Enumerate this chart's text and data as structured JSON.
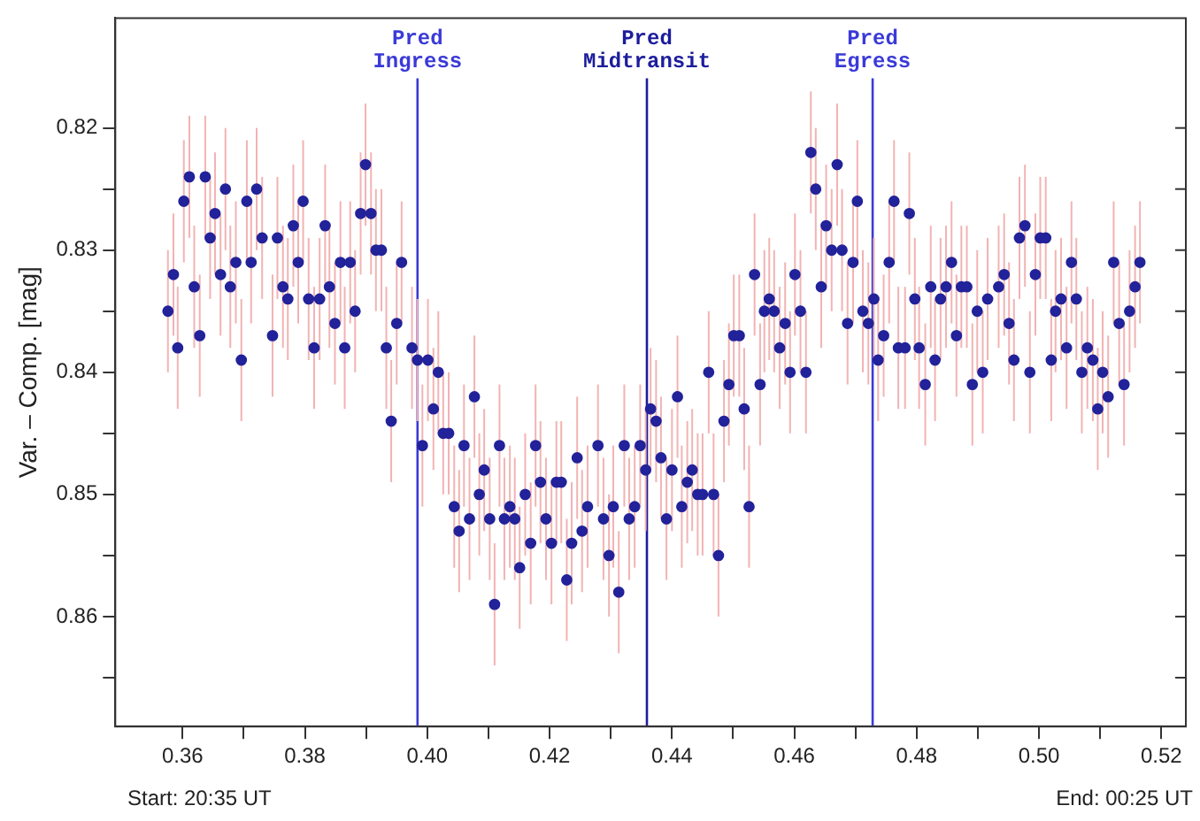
{
  "chart_data": {
    "type": "scatter",
    "ylabel": "Var. – Comp. [mag]",
    "annotations": [
      "Start: 20:35 UT",
      "End: 00:25 UT"
    ],
    "x": [
      0.3576,
      0.3585,
      0.3592,
      0.3602,
      0.3611,
      0.3619,
      0.3628,
      0.3637,
      0.3645,
      0.3653,
      0.3662,
      0.367,
      0.3678,
      0.3687,
      0.3696,
      0.3705,
      0.3712,
      0.3721,
      0.373,
      0.3747,
      0.3755,
      0.3764,
      0.3772,
      0.3781,
      0.3789,
      0.3797,
      0.3806,
      0.3815,
      0.3824,
      0.3833,
      0.384,
      0.3849,
      0.3858,
      0.3865,
      0.3874,
      0.3882,
      0.3891,
      0.3899,
      0.3908,
      0.3916,
      0.3925,
      0.3933,
      0.3941,
      0.395,
      0.3958,
      0.3975,
      0.3984,
      0.3992,
      0.4001,
      0.401,
      0.4018,
      0.4026,
      0.4035,
      0.4044,
      0.4052,
      0.406,
      0.4069,
      0.4077,
      0.4085,
      0.4093,
      0.4102,
      0.411,
      0.4118,
      0.4126,
      0.4135,
      0.4143,
      0.4151,
      0.416,
      0.4169,
      0.4177,
      0.4185,
      0.4194,
      0.4203,
      0.4211,
      0.4219,
      0.4228,
      0.4236,
      0.4245,
      0.4253,
      0.4262,
      0.4279,
      0.4288,
      0.4297,
      0.4304,
      0.4313,
      0.4322,
      0.433,
      0.4339,
      0.4348,
      0.4357,
      0.4365,
      0.4374,
      0.4382,
      0.4391,
      0.44,
      0.4409,
      0.4416,
      0.4425,
      0.4433,
      0.4442,
      0.445,
      0.446,
      0.4468,
      0.4476,
      0.4485,
      0.4493,
      0.4501,
      0.451,
      0.4518,
      0.4526,
      0.4535,
      0.4544,
      0.4551,
      0.4559,
      0.4567,
      0.4576,
      0.4585,
      0.4593,
      0.4601,
      0.461,
      0.4619,
      0.4627,
      0.4635,
      0.4644,
      0.4652,
      0.4661,
      0.467,
      0.4678,
      0.4687,
      0.4696,
      0.4703,
      0.4712,
      0.4721,
      0.473,
      0.4737,
      0.4746,
      0.4755,
      0.4763,
      0.477,
      0.4781,
      0.4788,
      0.4797,
      0.4804,
      0.4814,
      0.4823,
      0.483,
      0.4839,
      0.4848,
      0.4857,
      0.4865,
      0.4873,
      0.4882,
      0.4891,
      0.4899,
      0.4908,
      0.4916,
      0.4934,
      0.4943,
      0.4951,
      0.4959,
      0.4968,
      0.4977,
      0.4985,
      0.4994,
      0.5002,
      0.5011,
      0.502,
      0.5027,
      0.5036,
      0.5045,
      0.5053,
      0.5061,
      0.507,
      0.5079,
      0.5088,
      0.5096,
      0.5104,
      0.5113,
      0.5122,
      0.5131,
      0.5139,
      0.5148,
      0.5157,
      0.5165
    ],
    "series": [
      {
        "color": "#22229a",
        "values": [
          0.835,
          0.832,
          0.838,
          0.826,
          0.824,
          0.833,
          0.837,
          0.824,
          0.829,
          0.827,
          0.832,
          0.825,
          0.833,
          0.831,
          0.839,
          0.826,
          0.831,
          0.825,
          0.829,
          0.837,
          0.829,
          0.833,
          0.834,
          0.828,
          0.831,
          0.826,
          0.834,
          0.838,
          0.834,
          0.828,
          0.833,
          0.836,
          0.831,
          0.838,
          0.831,
          0.835,
          0.827,
          0.823,
          0.827,
          0.83,
          0.83,
          0.838,
          0.844,
          0.836,
          0.831,
          0.838,
          0.839,
          0.846,
          0.839,
          0.843,
          0.84,
          0.845,
          0.845,
          0.851,
          0.853,
          0.846,
          0.852,
          0.842,
          0.85,
          0.848,
          0.852,
          0.859,
          0.846,
          0.852,
          0.851,
          0.852,
          0.856,
          0.85,
          0.854,
          0.846,
          0.849,
          0.852,
          0.854,
          0.849,
          0.849,
          0.857,
          0.854,
          0.847,
          0.853,
          0.851,
          0.846,
          0.852,
          0.855,
          0.851,
          0.858,
          0.846,
          0.852,
          0.851,
          0.846,
          0.848,
          0.843,
          0.844,
          0.847,
          0.852,
          0.848,
          0.842,
          0.851,
          0.849,
          0.848,
          0.85,
          0.85,
          0.84,
          0.85,
          0.855,
          0.844,
          0.841,
          0.837,
          0.837,
          0.843,
          0.851,
          0.832,
          0.841,
          0.835,
          0.834,
          0.835,
          0.838,
          0.836,
          0.84,
          0.832,
          0.835,
          0.84,
          0.822,
          0.825,
          0.833,
          0.828,
          0.83,
          0.823,
          0.83,
          0.836,
          0.831,
          0.826,
          0.835,
          0.836,
          0.834,
          0.839,
          0.837,
          0.831,
          0.826,
          0.838,
          0.838,
          0.827,
          0.834,
          0.838,
          0.841,
          0.833,
          0.839,
          0.834,
          0.833,
          0.831,
          0.837,
          0.833,
          0.833,
          0.841,
          0.835,
          0.84,
          0.834,
          0.833,
          0.832,
          0.836,
          0.839,
          0.829,
          0.828,
          0.84,
          0.832,
          0.829,
          0.829,
          0.839,
          0.835,
          0.834,
          0.838,
          0.831,
          0.834,
          0.84,
          0.838,
          0.839,
          0.843,
          0.84,
          0.842,
          0.831,
          0.836,
          0.841,
          0.835,
          0.833,
          0.831
        ],
        "errors": [
          0.005,
          0.005,
          0.005,
          0.005,
          0.005,
          0.005,
          0.005,
          0.005,
          0.005,
          0.005,
          0.005,
          0.005,
          0.005,
          0.005,
          0.005,
          0.005,
          0.005,
          0.005,
          0.005,
          0.005,
          0.005,
          0.005,
          0.005,
          0.005,
          0.005,
          0.005,
          0.005,
          0.005,
          0.005,
          0.005,
          0.005,
          0.005,
          0.005,
          0.005,
          0.005,
          0.005,
          0.005,
          0.005,
          0.005,
          0.005,
          0.005,
          0.005,
          0.005,
          0.005,
          0.005,
          0.005,
          0.005,
          0.005,
          0.005,
          0.005,
          0.005,
          0.005,
          0.005,
          0.005,
          0.005,
          0.005,
          0.005,
          0.005,
          0.005,
          0.005,
          0.005,
          0.005,
          0.005,
          0.005,
          0.005,
          0.005,
          0.005,
          0.005,
          0.005,
          0.005,
          0.005,
          0.005,
          0.005,
          0.005,
          0.005,
          0.005,
          0.005,
          0.005,
          0.005,
          0.005,
          0.005,
          0.005,
          0.005,
          0.005,
          0.005,
          0.005,
          0.005,
          0.005,
          0.005,
          0.005,
          0.005,
          0.005,
          0.005,
          0.005,
          0.005,
          0.005,
          0.005,
          0.005,
          0.005,
          0.005,
          0.005,
          0.005,
          0.005,
          0.005,
          0.005,
          0.005,
          0.005,
          0.005,
          0.005,
          0.005,
          0.005,
          0.005,
          0.005,
          0.005,
          0.005,
          0.005,
          0.005,
          0.005,
          0.005,
          0.005,
          0.005,
          0.005,
          0.005,
          0.005,
          0.005,
          0.005,
          0.005,
          0.005,
          0.005,
          0.005,
          0.005,
          0.005,
          0.005,
          0.005,
          0.005,
          0.005,
          0.005,
          0.005,
          0.005,
          0.005,
          0.005,
          0.005,
          0.005,
          0.005,
          0.005,
          0.005,
          0.005,
          0.005,
          0.005,
          0.005,
          0.005,
          0.005,
          0.005,
          0.005,
          0.005,
          0.005,
          0.005,
          0.005,
          0.005,
          0.005,
          0.005,
          0.005,
          0.005,
          0.005,
          0.005,
          0.005,
          0.005,
          0.005,
          0.005,
          0.005,
          0.005,
          0.005,
          0.005,
          0.005,
          0.005,
          0.005,
          0.005,
          0.005,
          0.005,
          0.005,
          0.005,
          0.005,
          0.005,
          0.005
        ]
      }
    ],
    "xlim": [
      0.349,
      0.524
    ],
    "xticks": [
      0.36,
      {
        "value": 0.37,
        "label": null
      },
      0.38,
      {
        "value": 0.39,
        "label": null
      },
      {
        "value": 0.4,
        "label": "0.40"
      },
      {
        "value": 0.41,
        "label": null
      },
      0.42,
      {
        "value": 0.43,
        "label": null
      },
      0.44,
      {
        "value": 0.45,
        "label": null
      },
      0.46,
      {
        "value": 0.47,
        "label": null
      },
      0.48,
      {
        "value": 0.49,
        "label": null
      },
      {
        "value": 0.5,
        "label": "0.50"
      },
      {
        "value": 0.51,
        "label": null
      },
      0.52
    ],
    "ylim": [
      0.869,
      0.811
    ],
    "yticks": [
      0.82,
      {
        "value": 0.825,
        "label": null
      },
      0.83,
      {
        "value": 0.835,
        "label": null
      },
      0.84,
      {
        "value": 0.845,
        "label": null
      },
      0.85,
      {
        "value": 0.855,
        "label": null
      },
      0.86,
      {
        "value": 0.865,
        "label": null
      }
    ],
    "ref_lines": [
      {
        "axis": "x",
        "value": 0.3984,
        "label": "Pred\nIngress",
        "color": "#3a3ad8"
      },
      {
        "axis": "x",
        "value": 0.4359,
        "label": "Pred\nMidtransit",
        "color": "#1c1c9c"
      },
      {
        "axis": "x",
        "value": 0.4728,
        "label": "Pred\nEgress",
        "color": "#3a3ad8"
      }
    ],
    "grid": false,
    "legend": false,
    "marker": "circle"
  }
}
